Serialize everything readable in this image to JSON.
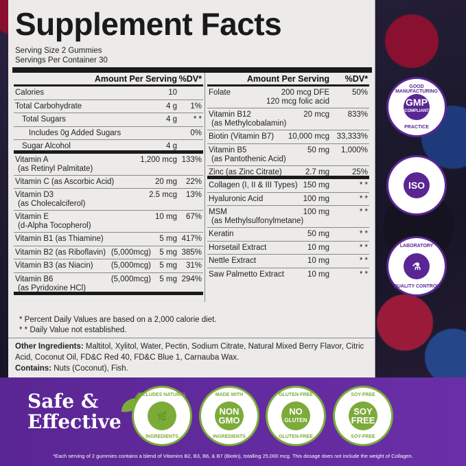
{
  "title": "Supplement Facts",
  "serving_size": "Serving Size 2 Gummies",
  "servings_per_container": "Servings Per Container 30",
  "header": {
    "amount": "Amount Per Serving",
    "dv": "%DV*"
  },
  "left_rows": [
    {
      "name": "Calories",
      "amount": "10",
      "dv": ""
    },
    {
      "name": "Total Carbohydrate",
      "amount": "4 g",
      "dv": "1%"
    },
    {
      "name": "Total Sugars",
      "amount": "4 g",
      "dv": "* *",
      "indent": 1
    },
    {
      "name": "Includes 0g Added Sugars",
      "amount": "",
      "dv": "0%",
      "indent": 2
    },
    {
      "name": "Sugar Alcohol",
      "amount": "4 g",
      "dv": "",
      "indent": 1,
      "thick": true
    },
    {
      "name": "Vitamin A",
      "sub": "(as Retinyl Palmitate)",
      "amount": "1,200 mcg",
      "dv": "133%"
    },
    {
      "name": "Vitamin C (as Ascorbic Acid)",
      "amount": "20 mg",
      "dv": "22%"
    },
    {
      "name": "Vitamin D3",
      "sub": "(as Cholecalciferol)",
      "amount": "2.5 mcg",
      "dv": "13%"
    },
    {
      "name": "Vitamin E",
      "sub": "(d-Alpha Tocopherol)",
      "amount": "10 mg",
      "dv": "67%"
    },
    {
      "name": "Vitamin B1 (as Thiamine)",
      "amount": "5 mg",
      "dv": "417%"
    },
    {
      "name": "Vitamin B2 (as Riboflavin)",
      "extra": "(5,000mcg)",
      "amount": "5 mg",
      "dv": "385%"
    },
    {
      "name": "Vitamin B3 (as Niacin)",
      "extra": "(5,000mcg)",
      "amount": "5 mg",
      "dv": "31%"
    },
    {
      "name": "Vitamin B6",
      "sub": "(as Pyridoxine HCl)",
      "extra": "(5,000mcg)",
      "amount": "5 mg",
      "dv": "294%",
      "thick": true
    }
  ],
  "right_rows": [
    {
      "name": "Folate",
      "amount": "200 mcg DFE",
      "amount2": "120 mcg folic acid",
      "dv": "50%"
    },
    {
      "name": "Vitamin B12",
      "sub": "(as Methylcobalamin)",
      "amount": "20 mcg",
      "dv": "833%"
    },
    {
      "name": "Biotin (Vitamin B7)",
      "amount": "10,000 mcg",
      "dv": "33,333%"
    },
    {
      "name": "Vitamin B5",
      "sub": "(as Pantothenic Acid)",
      "amount": "50 mg",
      "dv": "1,000%"
    },
    {
      "name": "Zinc (as Zinc Citrate)",
      "amount": "2.7 mg",
      "dv": "25%",
      "thick": true
    },
    {
      "name": "Collagen (I, II & III Types)",
      "amount": "150 mg",
      "dv": "* *"
    },
    {
      "name": "Hyaluronic Acid",
      "amount": "100 mg",
      "dv": "* *"
    },
    {
      "name": "MSM",
      "sub": "(as Methylsulfonylmetane)",
      "amount": "100 mg",
      "dv": "* *"
    },
    {
      "name": "Keratin",
      "amount": "50 mg",
      "dv": "* *"
    },
    {
      "name": "Horsetail Extract",
      "amount": "10 mg",
      "dv": "* *"
    },
    {
      "name": "Nettle Extract",
      "amount": "10 mg",
      "dv": "* *"
    },
    {
      "name": "Saw Palmetto Extract",
      "amount": "10 mg",
      "dv": "* *",
      "last": true
    }
  ],
  "footnotes": [
    "*  Percent Daily Values are based on a 2,000 calorie diet.",
    "* *  Daily Value not established."
  ],
  "other_ingredients": {
    "label": "Other Ingredients:",
    "text": " Maltitol, Xylitol, Water, Pectin, Sodium Citrate, Natural Mixed Berry Flavor, Citric Acid, Coconut Oil, FD&C Red 40, FD&C Blue 1, Carnauba Wax."
  },
  "contains": {
    "label": "Contains:",
    "text": " Nuts (Coconut), Fish."
  },
  "badges_right": [
    {
      "top": "GOOD MANUFACTURING",
      "center": "GMP",
      "center2": "COMPLIANT",
      "bottom": "PRACTICE"
    },
    {
      "top": "",
      "center": "ISO",
      "center2": "",
      "bottom": ""
    },
    {
      "top": "LABORATORY",
      "center": "⚗",
      "center2": "",
      "bottom": "QUALITY CONTROL"
    }
  ],
  "band": {
    "headline1": "Safe &",
    "headline2": "Effective",
    "seals": [
      {
        "top": "INCLUDES NATURAL",
        "center": "🌿",
        "center2": "",
        "bottom": "INGREDIENTS"
      },
      {
        "top": "MADE WITH",
        "center": "NON",
        "center2": "GMO",
        "bottom": "INGREDIENTS"
      },
      {
        "top": "GLUTEN-FREE",
        "center": "NO",
        "center2": "GLUTEN",
        "bottom": "GLUTEN-FREE"
      },
      {
        "top": "SOY-FREE",
        "center": "SOY",
        "center2": "FREE",
        "bottom": "SOY-FREE"
      }
    ],
    "note": "*Each serving of 2 gummies contains a blend of Vitamins B2, B3, B6, & B7 (Biotin), totalling 25,000 mcg. This dosage does not include the weight of Collagen."
  },
  "colors": {
    "purple": "#5a2693",
    "green": "#7dab3a",
    "panel": "#ecebea"
  }
}
